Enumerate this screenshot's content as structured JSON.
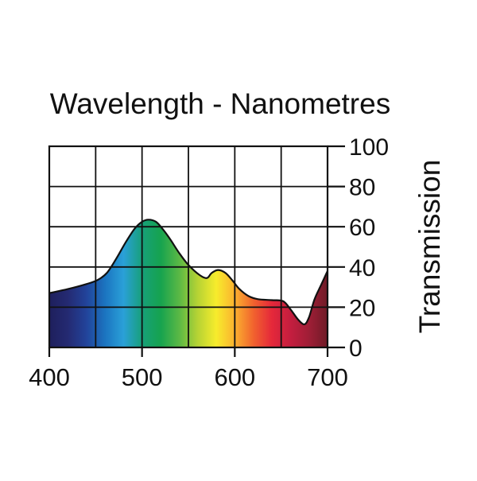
{
  "chart_data": {
    "type": "area",
    "title": "Wavelength - Nanometres",
    "xlabel": "",
    "ylabel": "Transmission",
    "xlim": [
      400,
      700
    ],
    "ylim": [
      0,
      100
    ],
    "x_ticks": [
      400,
      500,
      600,
      700
    ],
    "y_ticks": [
      0,
      20,
      40,
      60,
      80,
      100
    ],
    "grid": true,
    "fill": "visible spectrum gradient",
    "series": [
      {
        "x": [
          400,
          420,
          440,
          452,
          462,
          472,
          482,
          492,
          500,
          507,
          515,
          522,
          530,
          540,
          550,
          562,
          570,
          575,
          582,
          590,
          598,
          605,
          615,
          625,
          640,
          652,
          660,
          668,
          675,
          680,
          686,
          693,
          700
        ],
        "y": [
          27,
          29,
          31.5,
          33.5,
          37,
          44,
          52,
          59,
          62.5,
          63.5,
          62.5,
          59,
          54,
          47,
          41,
          36,
          34.5,
          37,
          38.5,
          37,
          33,
          29,
          25.5,
          24,
          23.5,
          23,
          19,
          14,
          11.5,
          15,
          24,
          31,
          38
        ]
      }
    ],
    "spectrum_colors": [
      "#1e1f5c",
      "#242a72",
      "#22439a",
      "#1b74c0",
      "#2aa0d8",
      "#17a07a",
      "#16a34f",
      "#5ab845",
      "#b6d334",
      "#f7ec2c",
      "#fbb12f",
      "#f1632e",
      "#e5283a",
      "#c41e3f",
      "#9f1e36",
      "#6f1b27"
    ]
  }
}
